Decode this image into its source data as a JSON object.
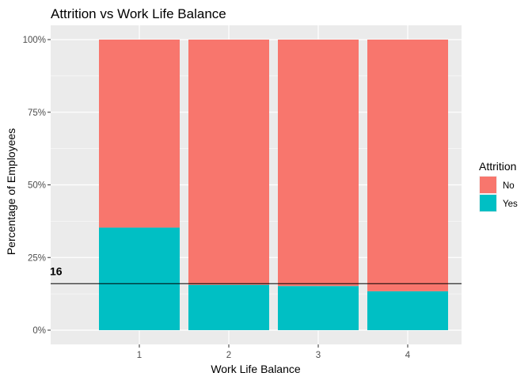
{
  "chart_data": {
    "type": "bar",
    "stacked": true,
    "title": "Attrition vs Work Life Balance",
    "xlabel": "Work Life Balance",
    "ylabel": "Percentage of Employees",
    "categories": [
      "1",
      "2",
      "3",
      "4"
    ],
    "ylim": [
      0,
      1
    ],
    "yticks": [
      {
        "value": 0,
        "label": "0%"
      },
      {
        "value": 0.25,
        "label": "25%"
      },
      {
        "value": 0.5,
        "label": "50%"
      },
      {
        "value": 0.75,
        "label": "75%"
      },
      {
        "value": 1,
        "label": "100%"
      }
    ],
    "series": [
      {
        "name": "Yes",
        "color": "#00BFC4",
        "values": [
          0.353,
          0.156,
          0.152,
          0.134
        ]
      },
      {
        "name": "No",
        "color": "#F8766D",
        "values": [
          0.647,
          0.844,
          0.848,
          0.866
        ]
      }
    ],
    "legend": {
      "title": "Attrition",
      "position": "right",
      "items": [
        {
          "label": "No",
          "color": "#F8766D"
        },
        {
          "label": "Yes",
          "color": "#00BFC4"
        }
      ]
    },
    "reference_line": {
      "value": 0.16,
      "label": "16"
    },
    "panel_color": "#EBEBEB",
    "grid": true
  }
}
